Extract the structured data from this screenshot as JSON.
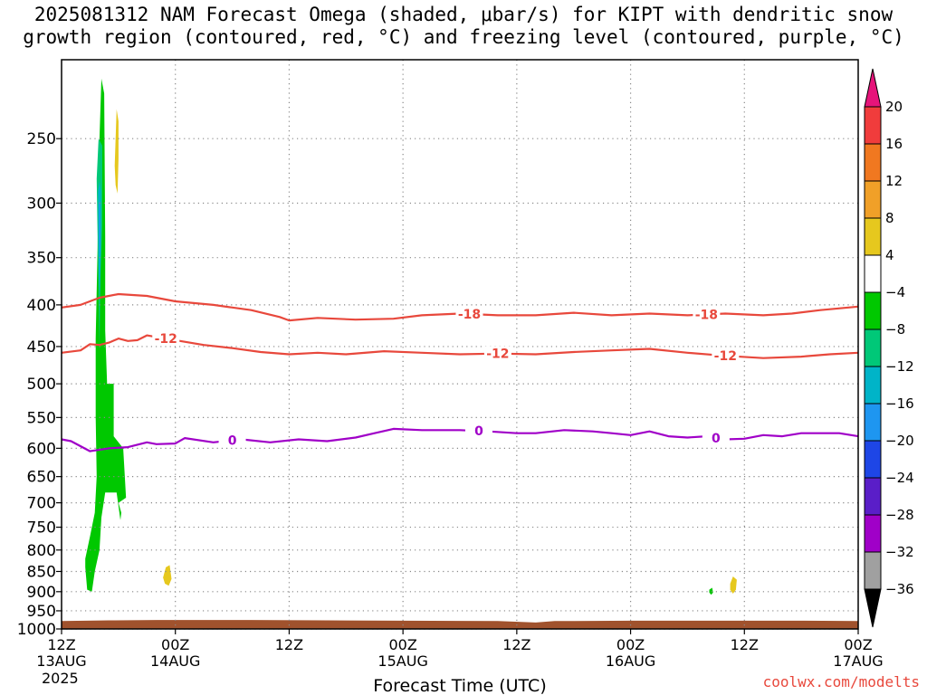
{
  "title": "2025081312 NAM Forecast Omega (shaded, μbar/s) for KIPT with dendritic snow\ngrowth region (contoured, red, °C) and freezing level (contoured, purple, °C)",
  "credit": "coolwx.com/modelts",
  "chart_data": {
    "type": "area",
    "xlabel": "Forecast Time (UTC)",
    "xlim": [
      0,
      84
    ],
    "ylim": [
      1000,
      200
    ],
    "y_scale": "log-pressure",
    "grid": true,
    "year_label": "2025",
    "x_ticks": [
      {
        "x": 0,
        "top": "12Z",
        "bottom": "13AUG"
      },
      {
        "x": 12,
        "top": "00Z",
        "bottom": "14AUG"
      },
      {
        "x": 24,
        "top": "12Z",
        "bottom": ""
      },
      {
        "x": 36,
        "top": "00Z",
        "bottom": "15AUG"
      },
      {
        "x": 48,
        "top": "12Z",
        "bottom": ""
      },
      {
        "x": 60,
        "top": "00Z",
        "bottom": "16AUG"
      },
      {
        "x": 72,
        "top": "12Z",
        "bottom": ""
      },
      {
        "x": 84,
        "top": "00Z",
        "bottom": "17AUG"
      }
    ],
    "y_ticks": [
      250,
      300,
      350,
      400,
      450,
      500,
      550,
      600,
      650,
      700,
      750,
      800,
      850,
      900,
      950,
      1000
    ],
    "colorbar": {
      "labels": [
        "20",
        "16",
        "12",
        "8",
        "4",
        "−4",
        "−8",
        "−12",
        "−16",
        "−20",
        "−24",
        "−28",
        "−32",
        "−36"
      ],
      "bins": [
        {
          "lo": 16,
          "hi": 20,
          "color": "#f03c3c"
        },
        {
          "lo": 12,
          "hi": 16,
          "color": "#f07820"
        },
        {
          "lo": 8,
          "hi": 12,
          "color": "#f0a028"
        },
        {
          "lo": 4,
          "hi": 8,
          "color": "#e6c81e"
        },
        {
          "lo": -4,
          "hi": 4,
          "color": "#ffffff"
        },
        {
          "lo": -8,
          "hi": -4,
          "color": "#00c800"
        },
        {
          "lo": -12,
          "hi": -8,
          "color": "#00c878"
        },
        {
          "lo": -16,
          "hi": -12,
          "color": "#00b4c8"
        },
        {
          "lo": -20,
          "hi": -16,
          "color": "#1e96f0"
        },
        {
          "lo": -24,
          "hi": -20,
          "color": "#1e46e6"
        },
        {
          "lo": -28,
          "hi": -24,
          "color": "#5a1ec8"
        },
        {
          "lo": -32,
          "hi": -28,
          "color": "#a000c8"
        },
        {
          "lo": -36,
          "hi": -32,
          "color": "#a0a0a0"
        }
      ],
      "top_arrow_color": "#e6147a",
      "bottom_arrow_color": "#000000"
    },
    "contours": [
      {
        "name": "-18",
        "color": "#e8483c",
        "labels_x": [
          43,
          68
        ],
        "points": [
          [
            0,
            403
          ],
          [
            2,
            400
          ],
          [
            4,
            392
          ],
          [
            6,
            388
          ],
          [
            9,
            390
          ],
          [
            12,
            396
          ],
          [
            16,
            400
          ],
          [
            20,
            406
          ],
          [
            23,
            414
          ],
          [
            24,
            418
          ],
          [
            27,
            415
          ],
          [
            31,
            417
          ],
          [
            35,
            416
          ],
          [
            38,
            412
          ],
          [
            42,
            410
          ],
          [
            46,
            412
          ],
          [
            50,
            412
          ],
          [
            54,
            409
          ],
          [
            58,
            412
          ],
          [
            62,
            410
          ],
          [
            66,
            412
          ],
          [
            70,
            410
          ],
          [
            74,
            412
          ],
          [
            77,
            410
          ],
          [
            80,
            406
          ],
          [
            84,
            402
          ]
        ]
      },
      {
        "name": "-12",
        "color": "#e8483c",
        "labels_x": [
          11,
          46,
          70
        ],
        "points": [
          [
            0,
            458
          ],
          [
            2,
            455
          ],
          [
            3,
            447
          ],
          [
            4,
            448
          ],
          [
            5,
            445
          ],
          [
            6,
            440
          ],
          [
            7,
            443
          ],
          [
            8,
            442
          ],
          [
            9,
            436
          ],
          [
            10,
            438
          ],
          [
            12,
            442
          ],
          [
            15,
            448
          ],
          [
            18,
            452
          ],
          [
            21,
            457
          ],
          [
            24,
            460
          ],
          [
            27,
            458
          ],
          [
            30,
            460
          ],
          [
            34,
            456
          ],
          [
            38,
            458
          ],
          [
            42,
            460
          ],
          [
            46,
            459
          ],
          [
            50,
            460
          ],
          [
            54,
            457
          ],
          [
            58,
            455
          ],
          [
            62,
            453
          ],
          [
            66,
            458
          ],
          [
            70,
            462
          ],
          [
            74,
            465
          ],
          [
            78,
            463
          ],
          [
            81,
            460
          ],
          [
            84,
            458
          ]
        ]
      },
      {
        "name": "0",
        "color": "#a000c8",
        "labels_x": [
          18,
          44,
          69
        ],
        "points": [
          [
            0,
            585
          ],
          [
            1,
            588
          ],
          [
            3,
            605
          ],
          [
            5,
            600
          ],
          [
            7,
            598
          ],
          [
            9,
            590
          ],
          [
            10,
            593
          ],
          [
            12,
            592
          ],
          [
            13,
            583
          ],
          [
            16,
            590
          ],
          [
            19,
            585
          ],
          [
            22,
            590
          ],
          [
            25,
            585
          ],
          [
            28,
            588
          ],
          [
            31,
            582
          ],
          [
            33,
            575
          ],
          [
            35,
            568
          ],
          [
            38,
            570
          ],
          [
            42,
            570
          ],
          [
            45,
            572
          ],
          [
            48,
            575
          ],
          [
            50,
            575
          ],
          [
            53,
            570
          ],
          [
            56,
            572
          ],
          [
            58,
            575
          ],
          [
            60,
            578
          ],
          [
            62,
            572
          ],
          [
            64,
            580
          ],
          [
            66,
            582
          ],
          [
            68,
            580
          ],
          [
            70,
            585
          ],
          [
            72,
            584
          ],
          [
            74,
            578
          ],
          [
            76,
            580
          ],
          [
            78,
            575
          ],
          [
            80,
            575
          ],
          [
            82,
            575
          ],
          [
            84,
            580
          ]
        ]
      }
    ],
    "shaded": [
      {
        "value_bin": "-4 to -8",
        "color": "#00c800",
        "points": [
          [
            2.5,
            820
          ],
          [
            3.0,
            770
          ],
          [
            3.5,
            720
          ],
          [
            3.7,
            650
          ],
          [
            3.6,
            550
          ],
          [
            3.6,
            440
          ],
          [
            3.8,
            340
          ],
          [
            4.0,
            250
          ],
          [
            4.2,
            211
          ],
          [
            4.5,
            220
          ],
          [
            4.6,
            330
          ],
          [
            4.6,
            430
          ],
          [
            4.8,
            500
          ],
          [
            5.5,
            500
          ],
          [
            5.5,
            580
          ],
          [
            6.5,
            600
          ],
          [
            6.8,
            690
          ],
          [
            6.0,
            700
          ],
          [
            6.3,
            720
          ],
          [
            6.2,
            735
          ],
          [
            5.8,
            680
          ],
          [
            4.6,
            680
          ],
          [
            4.2,
            730
          ],
          [
            4.0,
            800
          ],
          [
            3.5,
            850
          ],
          [
            3.2,
            900
          ],
          [
            2.7,
            895
          ],
          [
            2.5,
            840
          ]
        ]
      },
      {
        "value_bin": "-8 to -12",
        "color": "#00c878",
        "points": [
          [
            3.7,
            280
          ],
          [
            3.9,
            250
          ],
          [
            4.3,
            255
          ],
          [
            4.3,
            320
          ],
          [
            4.1,
            370
          ],
          [
            4.0,
            450
          ],
          [
            3.9,
            400
          ],
          [
            3.8,
            330
          ]
        ]
      },
      {
        "value_bin": "-12 to -16",
        "color": "#00b4c8",
        "points": [
          [
            3.85,
            290
          ],
          [
            4.0,
            282
          ],
          [
            4.15,
            290
          ],
          [
            4.15,
            340
          ],
          [
            4.05,
            390
          ],
          [
            3.9,
            360
          ]
        ]
      },
      {
        "value_bin": "-16 to -20",
        "color": "#1e96f0",
        "points": [
          [
            3.95,
            300
          ],
          [
            4.05,
            298
          ],
          [
            4.1,
            330
          ],
          [
            4.0,
            355
          ],
          [
            3.95,
            330
          ]
        ]
      },
      {
        "value_bin": "4 to 8",
        "color": "#e6c81e",
        "points": [
          [
            5.6,
            270
          ],
          [
            5.8,
            230
          ],
          [
            6.0,
            238
          ],
          [
            6.0,
            265
          ],
          [
            5.9,
            292
          ],
          [
            5.7,
            285
          ]
        ]
      },
      {
        "value_bin": "4 to 8",
        "color": "#e6c81e",
        "points": [
          [
            10.7,
            865
          ],
          [
            11.0,
            840
          ],
          [
            11.4,
            835
          ],
          [
            11.6,
            868
          ],
          [
            11.3,
            885
          ],
          [
            10.9,
            880
          ]
        ]
      },
      {
        "value_bin": "4 to 8",
        "color": "#e6c81e",
        "points": [
          [
            70.5,
            880
          ],
          [
            70.8,
            862
          ],
          [
            71.2,
            870
          ],
          [
            71.1,
            895
          ],
          [
            70.8,
            905
          ],
          [
            70.5,
            895
          ]
        ]
      },
      {
        "value_bin": "-4 to -8",
        "color": "#00c800",
        "points": [
          [
            68.3,
            895
          ],
          [
            68.6,
            890
          ],
          [
            68.7,
            902
          ],
          [
            68.5,
            908
          ],
          [
            68.3,
            902
          ]
        ]
      }
    ],
    "terrain": {
      "color": "#a0522d",
      "top": [
        [
          0,
          978
        ],
        [
          5,
          976
        ],
        [
          10,
          975
        ],
        [
          20,
          975
        ],
        [
          28,
          976
        ],
        [
          36,
          977
        ],
        [
          46,
          978
        ],
        [
          50,
          982
        ],
        [
          52,
          978
        ],
        [
          60,
          977
        ],
        [
          70,
          977
        ],
        [
          78,
          977
        ],
        [
          84,
          978
        ]
      ]
    }
  }
}
